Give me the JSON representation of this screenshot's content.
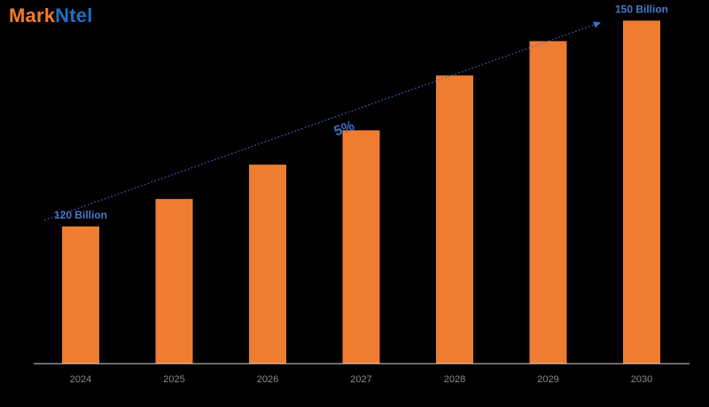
{
  "logo": {
    "part1": "Mark",
    "part2": "Ntel",
    "colors": {
      "part1": "#f07c2a",
      "part2": "#1f6fbf"
    }
  },
  "chart_data": {
    "type": "bar",
    "categories": [
      "2024",
      "2025",
      "2026",
      "2027",
      "2028",
      "2029",
      "2030"
    ],
    "values": [
      120,
      124,
      129,
      134,
      142,
      147,
      150
    ],
    "unit": "Billion",
    "data_labels": [
      {
        "index": 0,
        "text": "120 Billion"
      },
      {
        "index": 6,
        "text": "150 Billion"
      }
    ],
    "annotation": {
      "text": "5%",
      "style": "dotted-arrow"
    },
    "ylim": [
      100,
      153
    ],
    "grid": false,
    "legend": "none",
    "colors": {
      "bar": "#ee7d31",
      "label": "#4a78c8",
      "arrow": "#3f6fc4",
      "axis": "#d9d9d9",
      "tick": "#8a8a8a",
      "background": "#000000"
    }
  }
}
